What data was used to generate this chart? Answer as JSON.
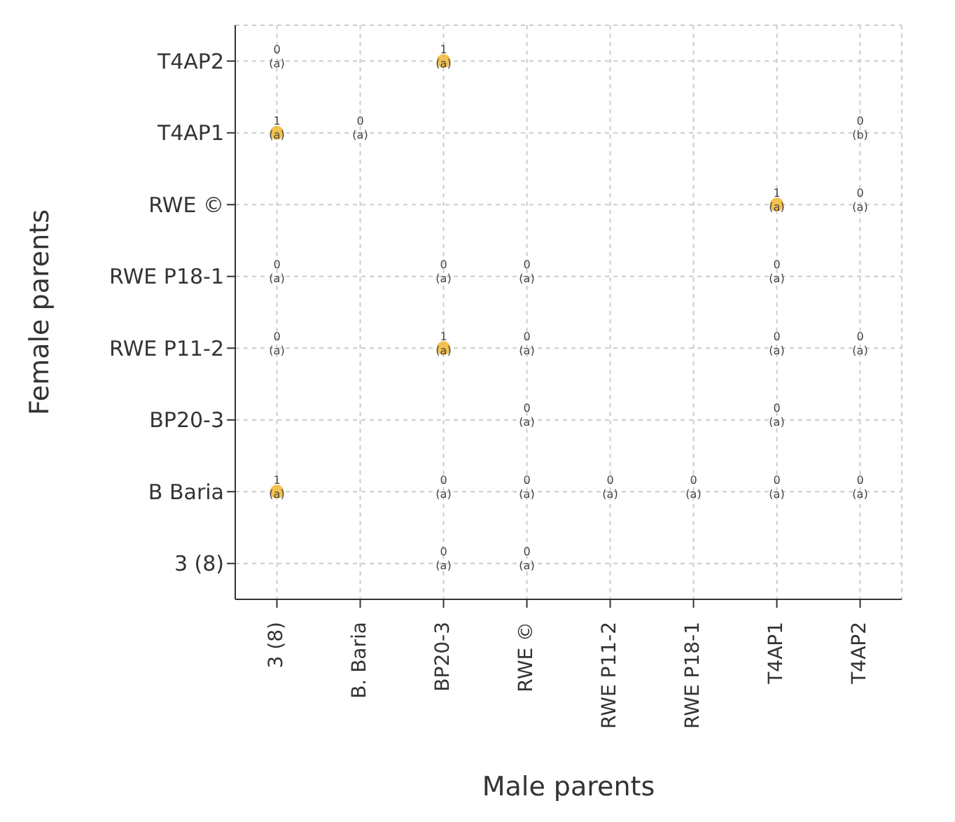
{
  "chart_data": {
    "type": "heatmap",
    "xlabel": "Male parents",
    "ylabel": "Female parents",
    "color": "#f2c14e",
    "grid": true,
    "categories": [
      "3 (8)",
      "B. Baria",
      "BP20-3",
      "RWE ©",
      "RWE P11-2",
      "RWE P18-1",
      "T4AP1",
      "T4AP2"
    ],
    "y_categories": [
      "T4AP2",
      "T4AP1",
      "RWE ©",
      "RWE P18-1",
      "RWE P11-2",
      "BP20-3",
      "B Baria",
      "3 (8)"
    ],
    "cells": [
      [
        0,
        null,
        1,
        null,
        null,
        null,
        null,
        null
      ],
      [
        1,
        0,
        null,
        null,
        null,
        null,
        null,
        0
      ],
      [
        null,
        null,
        null,
        null,
        null,
        null,
        1,
        0
      ],
      [
        0,
        null,
        0,
        0,
        null,
        null,
        0,
        null
      ],
      [
        0,
        null,
        1,
        0,
        null,
        null,
        0,
        0
      ],
      [
        null,
        null,
        null,
        0,
        null,
        null,
        0,
        null
      ],
      [
        1,
        null,
        0,
        0,
        0,
        0,
        0,
        0
      ],
      [
        null,
        null,
        0,
        0,
        null,
        null,
        null,
        null
      ]
    ],
    "cell_labels": [
      [
        "0\n(a)",
        null,
        "1\n(a)",
        null,
        null,
        null,
        null,
        null
      ],
      [
        "1\n(a)",
        "0\n(a)",
        null,
        null,
        null,
        null,
        null,
        "0\n(b)"
      ],
      [
        null,
        null,
        null,
        null,
        null,
        null,
        "1\n(a)",
        "0\n(a)"
      ],
      [
        "0\n(a)",
        null,
        "0\n(a)",
        "0\n(a)",
        null,
        null,
        "0\n(a)",
        null
      ],
      [
        "0\n(a)",
        null,
        "1\n(a)",
        "0\n(a)",
        null,
        null,
        "0\n(a)",
        "0\n(a)"
      ],
      [
        null,
        null,
        null,
        "0\n(a)",
        null,
        null,
        "0\n(a)",
        null
      ],
      [
        "1\n(a)",
        null,
        "0\n(a)",
        "0\n(a)",
        "0\n(a)",
        "0\n(a)",
        "0\n(a)",
        "0\n(a)"
      ],
      [
        null,
        null,
        "0\n(a)",
        "0\n(a)",
        null,
        null,
        null,
        null
      ]
    ]
  }
}
